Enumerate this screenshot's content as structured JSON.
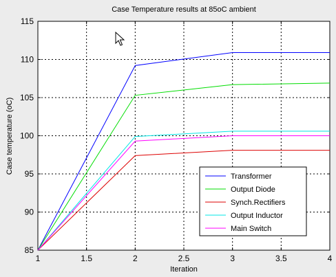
{
  "chart_data": {
    "type": "line",
    "title": "Case Temperature results at 85oC ambient",
    "xlabel": "Iteration",
    "ylabel": "Case temperature (oC)",
    "xlim": [
      1,
      4
    ],
    "ylim": [
      85,
      115
    ],
    "xticks": [
      1,
      1.5,
      2,
      2.5,
      3,
      3.5,
      4
    ],
    "xtick_labels": [
      "1",
      "1.5",
      "2",
      "2.5",
      "3",
      "3.5",
      "4"
    ],
    "yticks": [
      85,
      90,
      95,
      100,
      105,
      110,
      115
    ],
    "ytick_labels": [
      "85",
      "90",
      "95",
      "100",
      "105",
      "110",
      "115"
    ],
    "grid": true,
    "legend_position": "lower-right",
    "x": [
      1,
      2,
      3,
      4
    ],
    "series": [
      {
        "name": "Transformer",
        "color": "#0000ff",
        "values": [
          85,
          109.2,
          110.9,
          110.9
        ]
      },
      {
        "name": "Output Diode",
        "color": "#00dd00",
        "values": [
          85,
          105.3,
          106.7,
          106.9
        ]
      },
      {
        "name": "Synch.Rectifiers",
        "color": "#dd0000",
        "values": [
          85,
          97.4,
          98.1,
          98.1
        ]
      },
      {
        "name": "Output Inductor",
        "color": "#00e5e5",
        "values": [
          85,
          99.9,
          100.6,
          100.6
        ]
      },
      {
        "name": "Main Switch",
        "color": "#ff00ff",
        "values": [
          85,
          99.3,
          100.0,
          100.0
        ]
      }
    ]
  },
  "cursor": {
    "icon": "mouse-pointer-icon"
  }
}
